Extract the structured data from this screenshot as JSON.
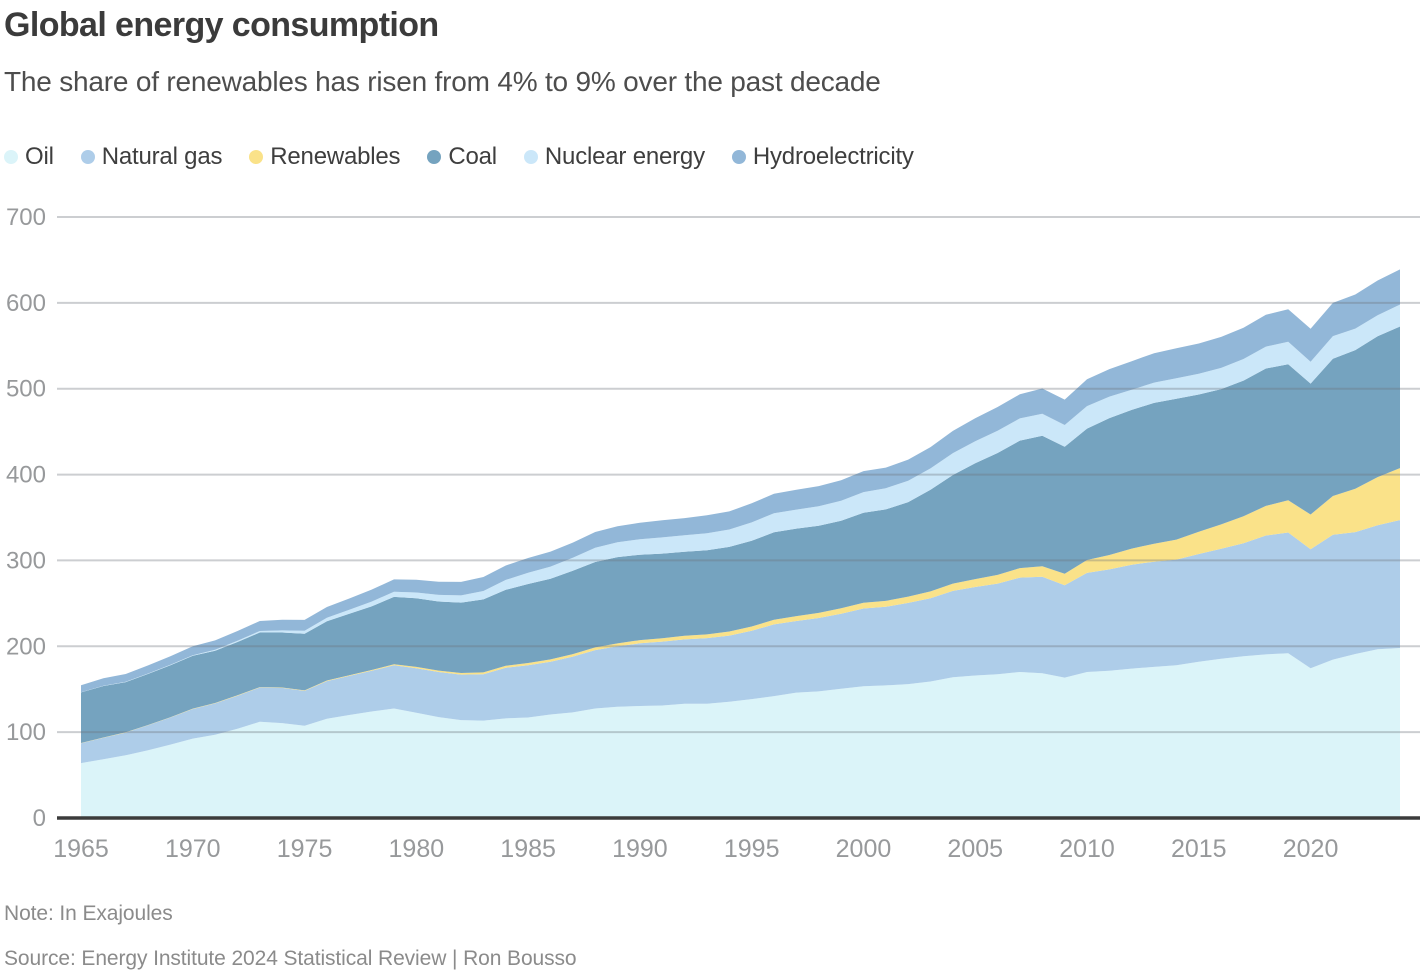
{
  "header": {
    "title": "Global energy consumption",
    "subtitle": "The share of renewables has risen from 4% to 9% over the past decade"
  },
  "legend": [
    {
      "label": "Oil",
      "color": "#dbf4f9"
    },
    {
      "label": "Natural gas",
      "color": "#aecde9"
    },
    {
      "label": "Renewables",
      "color": "#fae289"
    },
    {
      "label": "Coal",
      "color": "#75a3bf"
    },
    {
      "label": "Nuclear energy",
      "color": "#cbe7f9"
    },
    {
      "label": "Hydroelectricity",
      "color": "#92b7d8"
    }
  ],
  "chart_data": {
    "type": "area",
    "stacked": true,
    "title": "Global energy consumption",
    "subtitle": "The share of renewables has risen from 4% to 9% over the past decade",
    "unit": "Exajoules",
    "xlabel": "",
    "ylabel": "",
    "grid": "horizontal",
    "legend_position": "top",
    "ylim": [
      0,
      700
    ],
    "y_ticks": [
      0,
      100,
      200,
      300,
      400,
      500,
      600,
      700
    ],
    "x_ticks": [
      1965,
      1970,
      1975,
      1980,
      1985,
      1990,
      1995,
      2000,
      2005,
      2010,
      2015,
      2020
    ],
    "x": [
      1965,
      1966,
      1967,
      1968,
      1969,
      1970,
      1971,
      1972,
      1973,
      1974,
      1975,
      1976,
      1977,
      1978,
      1979,
      1980,
      1981,
      1982,
      1983,
      1984,
      1985,
      1986,
      1987,
      1988,
      1989,
      1990,
      1991,
      1992,
      1993,
      1994,
      1995,
      1996,
      1997,
      1998,
      1999,
      2000,
      2001,
      2002,
      2003,
      2004,
      2005,
      2006,
      2007,
      2008,
      2009,
      2010,
      2011,
      2012,
      2013,
      2014,
      2015,
      2016,
      2017,
      2018,
      2019,
      2020,
      2021,
      2022,
      2023,
      2024
    ],
    "stack_order_bottom_to_top": [
      "Oil",
      "Natural gas",
      "Renewables",
      "Coal",
      "Nuclear energy",
      "Hydroelectricity"
    ],
    "series": [
      {
        "name": "Oil",
        "color": "#dbf4f9",
        "values": [
          64,
          68.5,
          73,
          79,
          85.5,
          92.5,
          97,
          104,
          112,
          110.5,
          107.5,
          115.5,
          120,
          124,
          127.5,
          122.5,
          117.5,
          114,
          113.5,
          116,
          117,
          120.5,
          123,
          127.5,
          129.5,
          130.5,
          131,
          133,
          133,
          135.5,
          138.5,
          142,
          146,
          147.5,
          150.5,
          153.5,
          154.5,
          156,
          159,
          164,
          166,
          167.5,
          170,
          168.5,
          163.5,
          170,
          171.5,
          174,
          176,
          178,
          182,
          185.5,
          188.5,
          190.5,
          192,
          174.5,
          184.5,
          191,
          196.5,
          198
        ]
      },
      {
        "name": "Natural gas",
        "color": "#aecde9",
        "values": [
          23,
          25,
          26.5,
          29,
          31.5,
          34.5,
          36.5,
          38.5,
          40,
          41,
          40.5,
          44,
          45.5,
          47.5,
          50.5,
          52,
          52.5,
          53,
          54,
          59,
          61,
          61.5,
          65,
          68,
          70.5,
          73,
          74.5,
          75,
          76.5,
          77,
          79.5,
          83.5,
          83.5,
          85.5,
          87.5,
          90.5,
          91.5,
          94.5,
          97,
          100.5,
          103,
          105.5,
          110,
          112.5,
          107.5,
          115.5,
          118,
          121,
          122.5,
          123,
          125.5,
          128,
          131.5,
          138.5,
          140.5,
          138.5,
          145.5,
          142,
          144.5,
          149
        ]
      },
      {
        "name": "Renewables",
        "color": "#fae289",
        "values": [
          0.3,
          0.3,
          0.3,
          0.3,
          0.4,
          0.4,
          0.4,
          0.5,
          0.5,
          0.5,
          0.6,
          0.7,
          0.8,
          0.9,
          1,
          1.5,
          1.7,
          1.9,
          2.1,
          2.3,
          2.5,
          2.7,
          2.9,
          3.2,
          3.4,
          3.7,
          3.9,
          4.2,
          4.4,
          4.7,
          5,
          5.3,
          5.6,
          5.9,
          6.2,
          6.6,
          6.9,
          7.4,
          7.9,
          8.5,
          9.2,
          10.1,
          11.1,
          12.3,
          13.5,
          15,
          16.8,
          18.8,
          21,
          23.3,
          25.8,
          28.5,
          31.5,
          34.5,
          37.5,
          40.5,
          45,
          50.5,
          56,
          60.5
        ]
      },
      {
        "name": "Coal",
        "color": "#75a3bf",
        "values": [
          59,
          60,
          58.5,
          59.5,
          60.5,
          61.5,
          61,
          62,
          63.5,
          64,
          66,
          69,
          71.5,
          74,
          78.5,
          80,
          80.5,
          82,
          85,
          88.5,
          92,
          94,
          97,
          99.5,
          100.5,
          99.5,
          98.5,
          98,
          98,
          98.5,
          100,
          102,
          102,
          101.5,
          102,
          105,
          106.5,
          110,
          118.5,
          126.5,
          135,
          142,
          148.5,
          152,
          148,
          153,
          159.5,
          161.5,
          164,
          164,
          160,
          157.5,
          158,
          160,
          158.5,
          152.5,
          160,
          161.5,
          164,
          165
        ]
      },
      {
        "name": "Nuclear energy",
        "color": "#cbe7f9",
        "values": [
          0.2,
          0.3,
          0.4,
          0.5,
          0.6,
          0.7,
          1,
          1.4,
          1.8,
          2.5,
          3.4,
          4,
          4.8,
          5.6,
          6,
          6.6,
          7.7,
          8.4,
          9.8,
          11.5,
          13.2,
          14.1,
          15.2,
          16.5,
          17.3,
          18,
          18.9,
          19.1,
          19.8,
          20.3,
          21.3,
          22.2,
          22.1,
          22.7,
          23.4,
          24,
          24.7,
          25,
          24.8,
          25.5,
          25.7,
          26,
          25.8,
          25.6,
          25.2,
          26.2,
          25,
          23.4,
          23.6,
          24,
          24.2,
          24.7,
          25.1,
          25.5,
          26.2,
          25.4,
          26.3,
          25,
          24.6,
          25.5
        ]
      },
      {
        "name": "Hydroelectricity",
        "color": "#92b7d8",
        "values": [
          8.2,
          8.7,
          9,
          9.4,
          10,
          10.5,
          11,
          11.4,
          11.6,
          12.5,
          12.7,
          12.6,
          13.1,
          14,
          14.4,
          15,
          15.3,
          15.7,
          16.3,
          16.8,
          17.1,
          17.5,
          17.7,
          18.4,
          18.5,
          19.3,
          19.9,
          20,
          21,
          21.1,
          22.2,
          22.6,
          23.2,
          23.5,
          23.8,
          24.5,
          24,
          24.5,
          24.8,
          25.9,
          26.7,
          27.6,
          28.2,
          29.4,
          29.6,
          31.3,
          32.1,
          33.3,
          34.3,
          34.9,
          35.2,
          36.2,
          36.5,
          37.2,
          37.8,
          38.5,
          38.6,
          39.7,
          40.4,
          41
        ]
      }
    ]
  },
  "footer": {
    "note": "Note: In Exajoules",
    "source": "Source: Energy Institute 2024 Statistical Review | Ron Bousso"
  },
  "colors": {
    "title_text": "#3b3b3b",
    "subtitle_text": "#4d4d4d",
    "axis_text": "#97999b",
    "gridline": "#d4d7da",
    "baseline": "#3b3b3b",
    "footer_text": "#8b8b8b"
  }
}
